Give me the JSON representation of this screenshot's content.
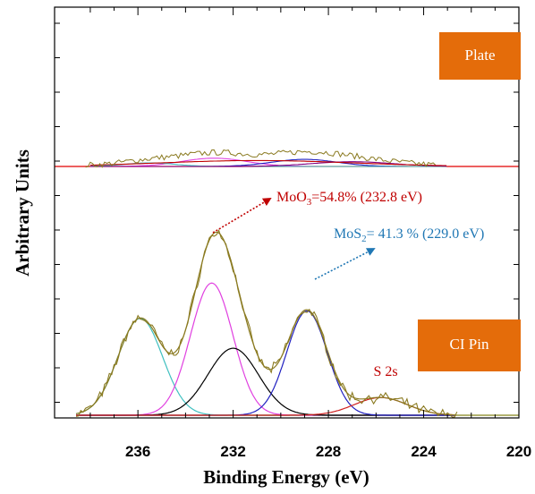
{
  "chart_data": {
    "type": "line",
    "title": "",
    "xlabel": "Binding Energy (eV)",
    "ylabel": "Arbitrary Units",
    "xlim": [
      239.5,
      220
    ],
    "x_reversed": true,
    "x_ticks": [
      236,
      232,
      228,
      224,
      220
    ],
    "x_tick_labels": [
      "236",
      "232",
      "228",
      "224",
      "220"
    ],
    "y_tick_labels": [],
    "grid": false,
    "panels": [
      {
        "label": "Plate",
        "label_color": "#E46C0A"
      },
      {
        "label": "CI Pin",
        "label_color": "#E46C0A"
      }
    ],
    "series": [
      {
        "name": "",
        "panel": "CI Pin",
        "role": "component",
        "color": "#40C0C0",
        "center": 235.9,
        "height": 0.52,
        "fwhm": 2.2
      },
      {
        "name": "MoO3",
        "panel": "CI Pin",
        "role": "component",
        "color": "#E040E0",
        "center": 232.9,
        "height": 0.71,
        "fwhm": 2.1
      },
      {
        "name": "",
        "panel": "CI Pin",
        "role": "component",
        "color": "#000000",
        "center": 232.0,
        "height": 0.36,
        "fwhm": 2.5
      },
      {
        "name": "MoS2",
        "panel": "CI Pin",
        "role": "component",
        "color": "#2020C0",
        "center": 228.9,
        "height": 0.56,
        "fwhm": 2.0
      },
      {
        "name": "S 2s",
        "panel": "CI Pin",
        "role": "component",
        "color": "#D02020",
        "center": 225.8,
        "height": 0.095,
        "fwhm": 2.6
      }
    ],
    "annotations": [
      {
        "text_before": "MoO",
        "sub": "3",
        "text_after": "=54.8% (232.8 eV)",
        "color": "#C00000"
      },
      {
        "text_before": "MoS",
        "sub": "2",
        "text_after": "= 41.3 % (229.0 eV)",
        "color": "#1F77B4"
      },
      {
        "text_before": "S 2s",
        "sub": "",
        "text_after": "",
        "color": "#C00000"
      }
    ],
    "colors": {
      "raw_data": "#8A7A20",
      "envelope": "#8A7A20",
      "plate_fit": "#C00000",
      "plate_baseline": "#E00000",
      "pin_baseline": "#9A9A40"
    }
  }
}
